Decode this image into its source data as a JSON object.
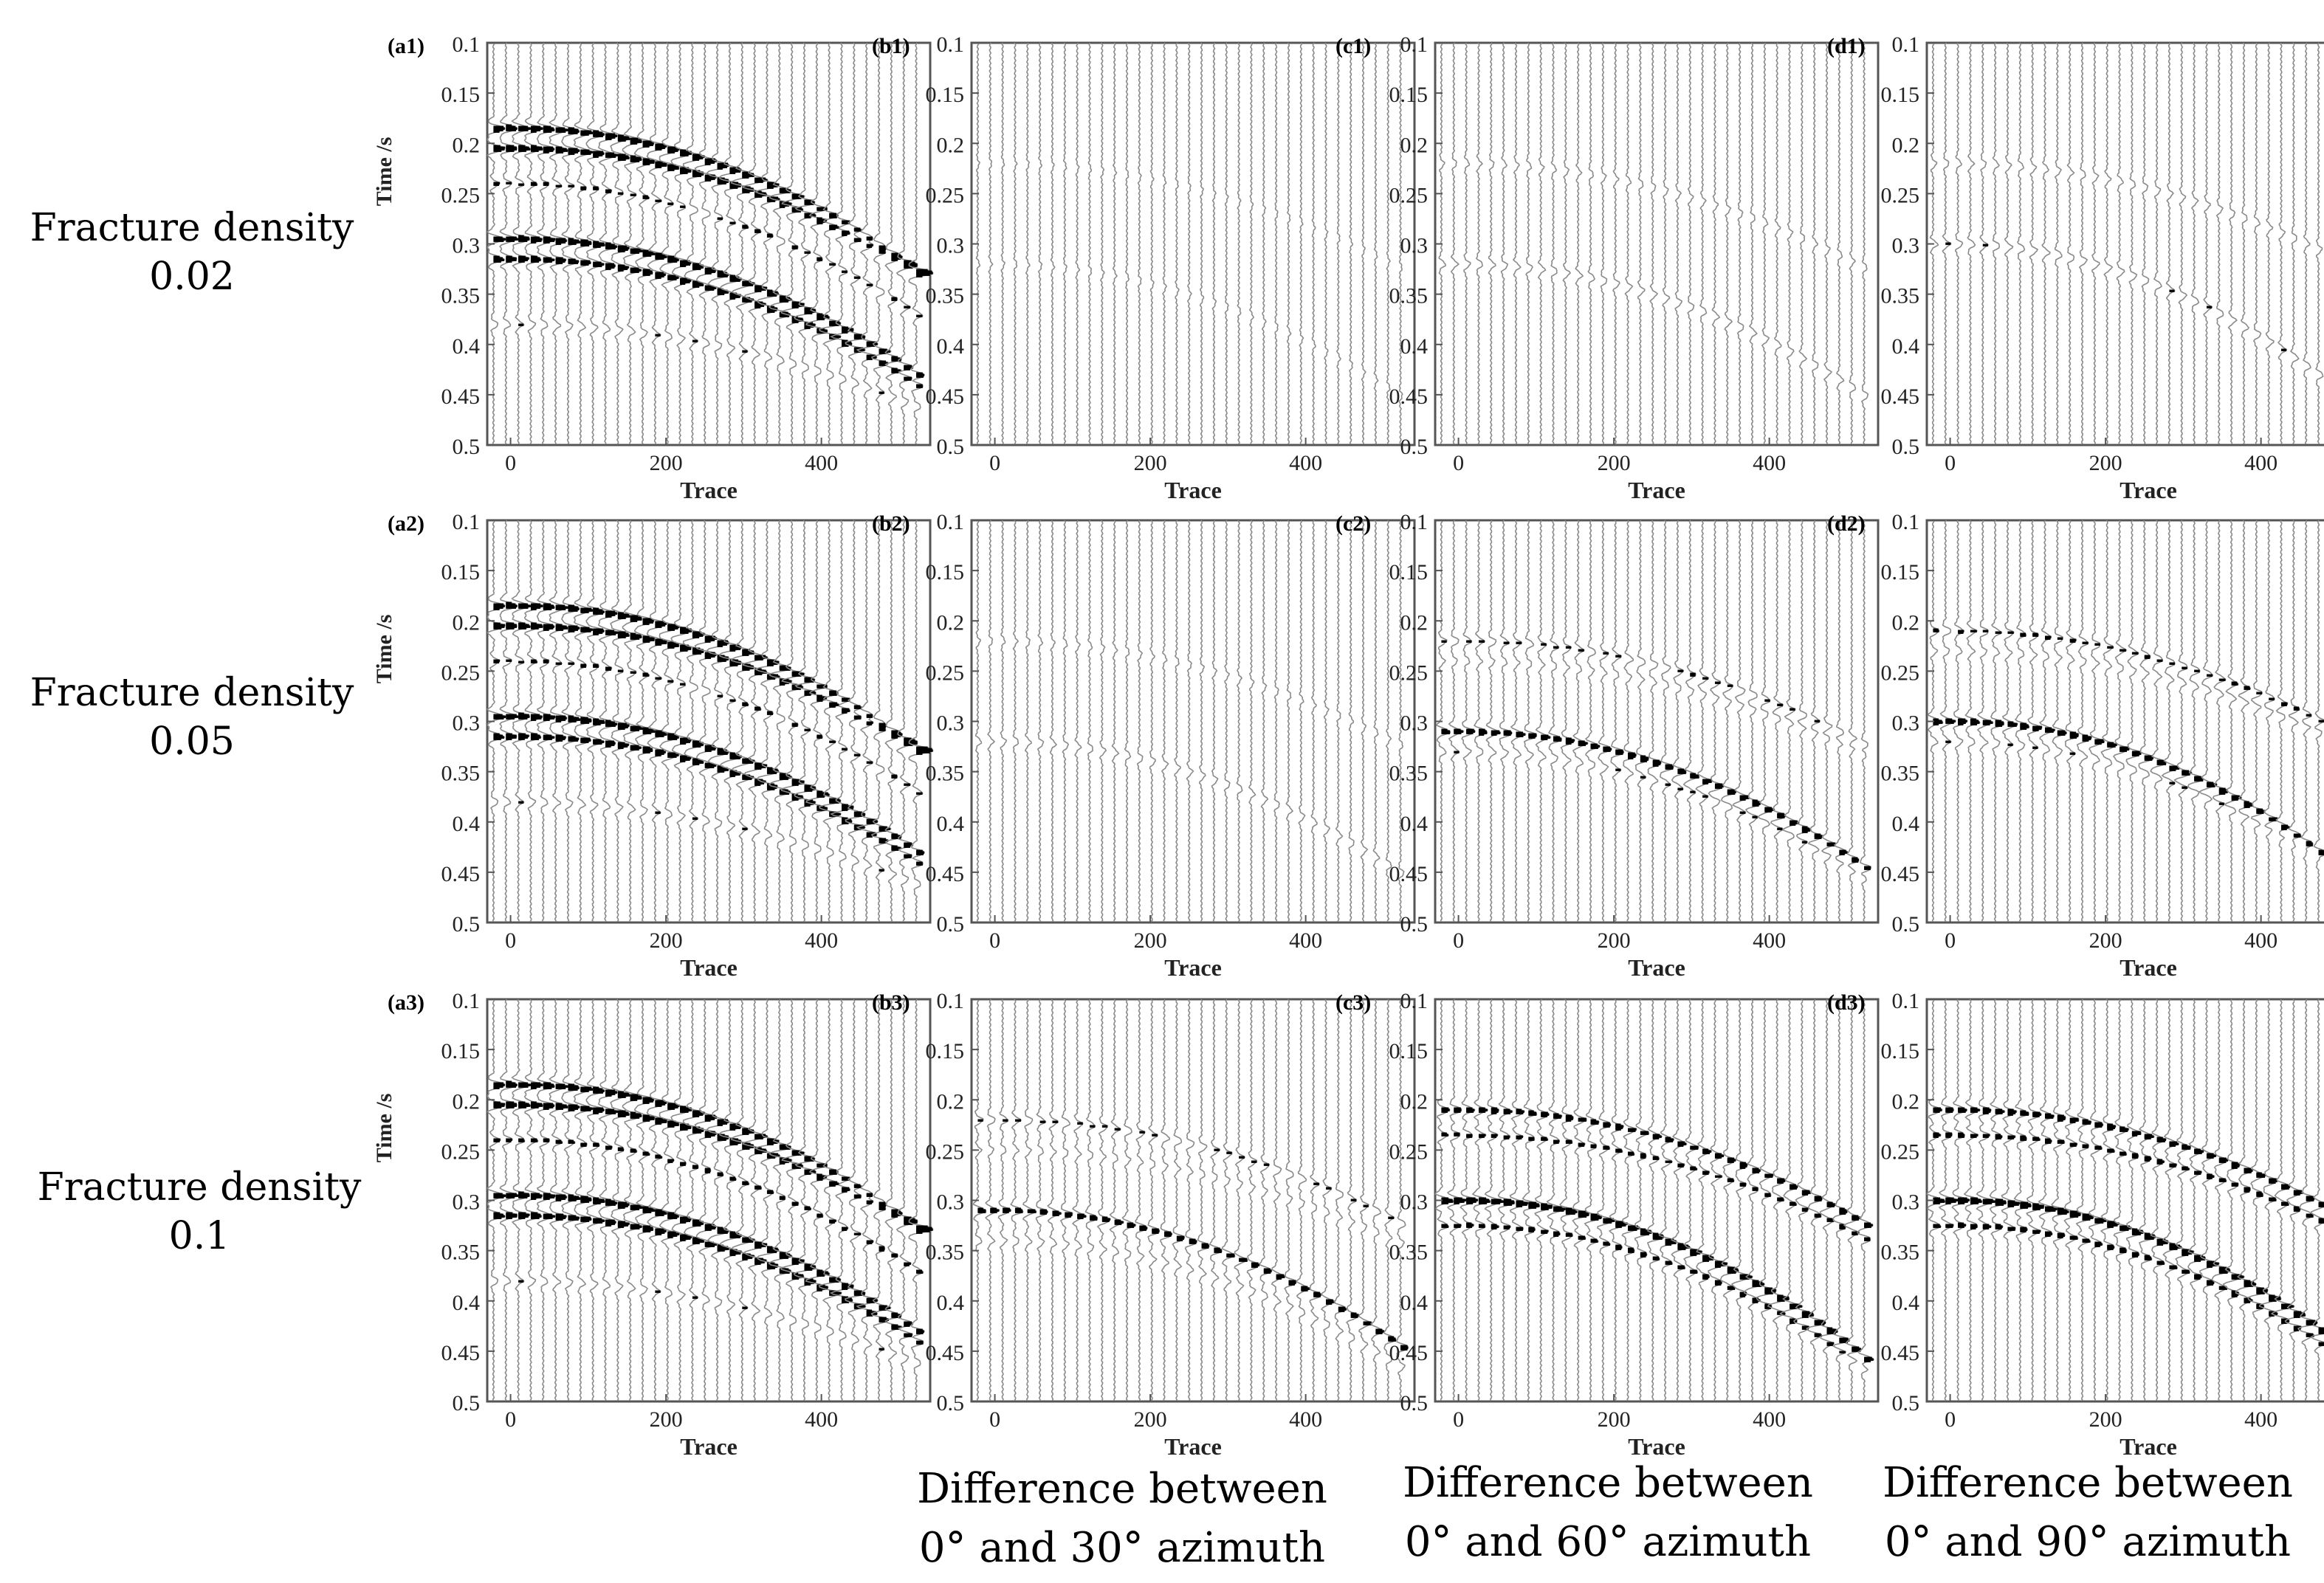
{
  "figure": {
    "row_labels": [
      {
        "line1": "Fracture density",
        "line2": "0.02"
      },
      {
        "line1": "Fracture density",
        "line2": "0.05"
      },
      {
        "line1": "Fracture density",
        "line2": "0.1"
      }
    ],
    "column_labels": [
      {
        "line1": "Difference between",
        "line2": "0° and 30° azimuth"
      },
      {
        "line1": "Difference between",
        "line2": "0° and 60° azimuth"
      },
      {
        "line1": "Difference between",
        "line2": "0° and 90° azimuth"
      }
    ]
  },
  "chart_data": {
    "type": "seismic-wiggle-grid",
    "xlabel": "Trace",
    "ylabel": "Time /s",
    "x_ticks": [
      0,
      200,
      400
    ],
    "y_ticks": [
      "0.1",
      "0.15",
      "0.2",
      "0.25",
      "0.3",
      "0.35",
      "0.4",
      "0.45",
      "0.5"
    ],
    "xlim": [
      -30,
      540
    ],
    "ylim": [
      0.1,
      0.5
    ],
    "wiggle_trace_spacing": 16,
    "event_curve": "t(x) = t0 + k * x^2",
    "panels": [
      {
        "label": "(a1)",
        "row": 0,
        "col": 0,
        "ylabel_shown": true,
        "events": [
          {
            "t0": 0.185,
            "k": 5.2e-07,
            "amp": 1.0
          },
          {
            "t0": 0.205,
            "k": 4.6e-07,
            "amp": 1.0
          },
          {
            "t0": 0.295,
            "k": 5e-07,
            "amp": 1.0
          },
          {
            "t0": 0.315,
            "k": 4.6e-07,
            "amp": 0.9
          },
          {
            "t0": 0.24,
            "k": 4.8e-07,
            "amp": 0.5
          },
          {
            "t0": 0.38,
            "k": 3e-07,
            "amp": 0.4
          }
        ]
      },
      {
        "label": "(b1)",
        "row": 0,
        "col": 1,
        "ylabel_shown": false,
        "events": [
          {
            "t0": 0.22,
            "k": 3.8e-07,
            "amp": 0.12
          },
          {
            "t0": 0.32,
            "k": 4.8e-07,
            "amp": 0.15
          }
        ]
      },
      {
        "label": "(c1)",
        "row": 0,
        "col": 2,
        "ylabel_shown": false,
        "events": [
          {
            "t0": 0.22,
            "k": 3.8e-07,
            "amp": 0.25
          },
          {
            "t0": 0.32,
            "k": 4.8e-07,
            "amp": 0.35
          }
        ]
      },
      {
        "label": "(d1)",
        "row": 0,
        "col": 3,
        "ylabel_shown": false,
        "events": [
          {
            "t0": 0.22,
            "k": 3.8e-07,
            "amp": 0.3
          },
          {
            "t0": 0.3,
            "k": 5.8e-07,
            "amp": 0.4
          }
        ]
      },
      {
        "label": "(a2)",
        "row": 1,
        "col": 0,
        "ylabel_shown": true,
        "events": [
          {
            "t0": 0.185,
            "k": 5.2e-07,
            "amp": 1.0
          },
          {
            "t0": 0.205,
            "k": 4.6e-07,
            "amp": 1.0
          },
          {
            "t0": 0.295,
            "k": 5e-07,
            "amp": 1.0
          },
          {
            "t0": 0.315,
            "k": 4.6e-07,
            "amp": 0.9
          },
          {
            "t0": 0.24,
            "k": 4.8e-07,
            "amp": 0.5
          },
          {
            "t0": 0.38,
            "k": 3e-07,
            "amp": 0.4
          }
        ]
      },
      {
        "label": "(b2)",
        "row": 1,
        "col": 1,
        "ylabel_shown": false,
        "events": [
          {
            "t0": 0.22,
            "k": 3.8e-07,
            "amp": 0.2
          },
          {
            "t0": 0.32,
            "k": 4.8e-07,
            "amp": 0.3
          }
        ]
      },
      {
        "label": "(c2)",
        "row": 1,
        "col": 2,
        "ylabel_shown": false,
        "events": [
          {
            "t0": 0.22,
            "k": 3.8e-07,
            "amp": 0.45
          },
          {
            "t0": 0.24,
            "k": 3.4e-07,
            "amp": 0.3
          },
          {
            "t0": 0.31,
            "k": 5e-07,
            "amp": 0.75
          },
          {
            "t0": 0.33,
            "k": 4.6e-07,
            "amp": 0.4
          }
        ]
      },
      {
        "label": "(d2)",
        "row": 1,
        "col": 3,
        "ylabel_shown": false,
        "events": [
          {
            "t0": 0.21,
            "k": 4e-07,
            "amp": 0.5
          },
          {
            "t0": 0.23,
            "k": 3.6e-07,
            "amp": 0.35
          },
          {
            "t0": 0.3,
            "k": 5.8e-07,
            "amp": 0.8
          },
          {
            "t0": 0.32,
            "k": 5.2e-07,
            "amp": 0.4
          }
        ]
      },
      {
        "label": "(a3)",
        "row": 2,
        "col": 0,
        "ylabel_shown": true,
        "events": [
          {
            "t0": 0.185,
            "k": 5.2e-07,
            "amp": 1.0
          },
          {
            "t0": 0.205,
            "k": 4.6e-07,
            "amp": 1.0
          },
          {
            "t0": 0.295,
            "k": 5e-07,
            "amp": 1.0
          },
          {
            "t0": 0.315,
            "k": 4.6e-07,
            "amp": 0.95
          },
          {
            "t0": 0.24,
            "k": 4.8e-07,
            "amp": 0.55
          },
          {
            "t0": 0.38,
            "k": 3e-07,
            "amp": 0.4
          }
        ]
      },
      {
        "label": "(b3)",
        "row": 2,
        "col": 1,
        "ylabel_shown": false,
        "events": [
          {
            "t0": 0.22,
            "k": 3.8e-07,
            "amp": 0.45
          },
          {
            "t0": 0.25,
            "k": 3.4e-07,
            "amp": 0.3
          },
          {
            "t0": 0.31,
            "k": 5e-07,
            "amp": 0.7
          },
          {
            "t0": 0.34,
            "k": 4.6e-07,
            "amp": 0.35
          }
        ]
      },
      {
        "label": "(c3)",
        "row": 2,
        "col": 2,
        "ylabel_shown": false,
        "events": [
          {
            "t0": 0.21,
            "k": 4.2e-07,
            "amp": 0.7
          },
          {
            "t0": 0.235,
            "k": 3.8e-07,
            "amp": 0.55
          },
          {
            "t0": 0.3,
            "k": 5.8e-07,
            "amp": 1.0
          },
          {
            "t0": 0.325,
            "k": 5.2e-07,
            "amp": 0.6
          }
        ]
      },
      {
        "label": "(d3)",
        "row": 2,
        "col": 3,
        "ylabel_shown": false,
        "events": [
          {
            "t0": 0.21,
            "k": 4.2e-07,
            "amp": 0.75
          },
          {
            "t0": 0.235,
            "k": 3.8e-07,
            "amp": 0.6
          },
          {
            "t0": 0.3,
            "k": 5.8e-07,
            "amp": 1.0
          },
          {
            "t0": 0.325,
            "k": 5.2e-07,
            "amp": 0.65
          }
        ]
      }
    ]
  }
}
